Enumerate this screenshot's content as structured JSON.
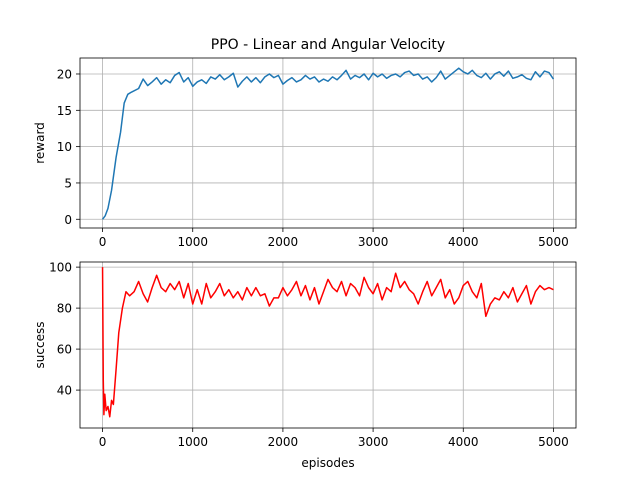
{
  "chart_data": [
    {
      "type": "line",
      "title": "PPO - Linear and Angular Velocity",
      "xlabel": "",
      "ylabel": "reward",
      "xlim": [
        -250,
        5250
      ],
      "ylim": [
        -1.2,
        22.2
      ],
      "xticks": [
        0,
        1000,
        2000,
        3000,
        4000,
        5000
      ],
      "yticks": [
        0,
        5,
        10,
        15,
        20
      ],
      "grid": true,
      "color": "#1f77b4",
      "series": [
        {
          "x": [
            0,
            30,
            60,
            100,
            150,
            200,
            240,
            280,
            320,
            400,
            450,
            500,
            550,
            600,
            650,
            700,
            750,
            800,
            850,
            900,
            950,
            1000,
            1050,
            1100,
            1150,
            1200,
            1250,
            1300,
            1350,
            1400,
            1450,
            1500,
            1550,
            1600,
            1650,
            1700,
            1750,
            1800,
            1850,
            1900,
            1950,
            2000,
            2050,
            2100,
            2150,
            2200,
            2250,
            2300,
            2350,
            2400,
            2450,
            2500,
            2550,
            2600,
            2650,
            2700,
            2750,
            2800,
            2850,
            2900,
            2950,
            3000,
            3050,
            3100,
            3150,
            3200,
            3250,
            3300,
            3350,
            3400,
            3450,
            3500,
            3550,
            3600,
            3650,
            3700,
            3750,
            3800,
            3850,
            3900,
            3950,
            4000,
            4050,
            4100,
            4150,
            4200,
            4250,
            4300,
            4350,
            4400,
            4450,
            4500,
            4550,
            4600,
            4650,
            4700,
            4750,
            4800,
            4850,
            4900,
            4950,
            5000
          ],
          "values": [
            0,
            0.5,
            1.5,
            4,
            8.5,
            12,
            16,
            17.2,
            17.5,
            18,
            19.3,
            18.4,
            18.9,
            19.5,
            18.6,
            19.2,
            18.8,
            19.8,
            20.2,
            18.9,
            19.5,
            18.3,
            18.9,
            19.2,
            18.7,
            19.6,
            19.3,
            19.9,
            19.2,
            19.6,
            20.1,
            18.2,
            19.0,
            19.6,
            18.9,
            19.5,
            18.8,
            19.6,
            20.0,
            19.5,
            19.8,
            18.6,
            19.1,
            19.5,
            18.9,
            19.2,
            19.8,
            19.3,
            19.6,
            18.9,
            19.3,
            19.0,
            19.6,
            19.2,
            19.8,
            20.5,
            19.3,
            19.8,
            19.5,
            20.0,
            19.2,
            20.1,
            19.6,
            20.0,
            19.4,
            19.8,
            20.0,
            19.6,
            20.2,
            20.4,
            19.8,
            20.0,
            19.3,
            19.6,
            18.9,
            19.5,
            20.4,
            19.3,
            19.8,
            20.3,
            20.8,
            20.3,
            20.0,
            20.5,
            19.8,
            19.5,
            20.1,
            19.3,
            20.0,
            20.3,
            19.7,
            20.4,
            19.4,
            19.6,
            19.9,
            19.4,
            19.2,
            20.3,
            19.6,
            20.4,
            20.2,
            19.3
          ]
        }
      ]
    },
    {
      "type": "line",
      "title": "",
      "xlabel": "episodes",
      "ylabel": "success",
      "xlim": [
        -250,
        5250
      ],
      "ylim": [
        21.5,
        102.5
      ],
      "xticks": [
        0,
        1000,
        2000,
        3000,
        4000,
        5000
      ],
      "yticks": [
        40,
        60,
        80,
        100
      ],
      "grid": true,
      "color": "#ff0000",
      "series": [
        {
          "x": [
            0,
            8,
            15,
            25,
            40,
            60,
            80,
            100,
            120,
            150,
            180,
            220,
            260,
            300,
            350,
            400,
            450,
            500,
            550,
            600,
            650,
            700,
            750,
            800,
            850,
            900,
            950,
            1000,
            1050,
            1100,
            1150,
            1200,
            1250,
            1300,
            1350,
            1400,
            1450,
            1500,
            1550,
            1600,
            1650,
            1700,
            1750,
            1800,
            1850,
            1900,
            1950,
            2000,
            2050,
            2100,
            2150,
            2200,
            2250,
            2300,
            2350,
            2400,
            2450,
            2500,
            2550,
            2600,
            2650,
            2700,
            2750,
            2800,
            2850,
            2900,
            2950,
            3000,
            3050,
            3100,
            3150,
            3200,
            3250,
            3300,
            3350,
            3400,
            3450,
            3500,
            3550,
            3600,
            3650,
            3700,
            3750,
            3800,
            3850,
            3900,
            3950,
            4000,
            4050,
            4100,
            4150,
            4200,
            4250,
            4300,
            4350,
            4400,
            4450,
            4500,
            4550,
            4600,
            4650,
            4700,
            4750,
            4800,
            4850,
            4900,
            4950,
            5000
          ],
          "values": [
            100,
            45,
            28,
            38,
            30,
            32,
            27,
            35,
            33,
            50,
            68,
            80,
            88,
            86,
            88,
            93,
            87,
            83,
            90,
            96,
            90,
            88,
            92,
            89,
            93,
            85,
            92,
            82,
            89,
            82,
            92,
            85,
            88,
            92,
            86,
            89,
            85,
            88,
            84,
            90,
            86,
            90,
            86,
            87,
            81,
            85,
            85,
            90,
            86,
            89,
            93,
            86,
            91,
            84,
            90,
            82,
            88,
            94,
            90,
            88,
            93,
            86,
            92,
            90,
            86,
            95,
            90,
            87,
            92,
            84,
            90,
            88,
            97,
            90,
            93,
            89,
            87,
            82,
            88,
            93,
            86,
            90,
            94,
            85,
            89,
            82,
            85,
            91,
            93,
            88,
            85,
            92,
            76,
            82,
            85,
            84,
            88,
            85,
            90,
            83,
            87,
            91,
            82,
            88,
            91,
            89,
            90,
            89
          ]
        }
      ]
    }
  ]
}
